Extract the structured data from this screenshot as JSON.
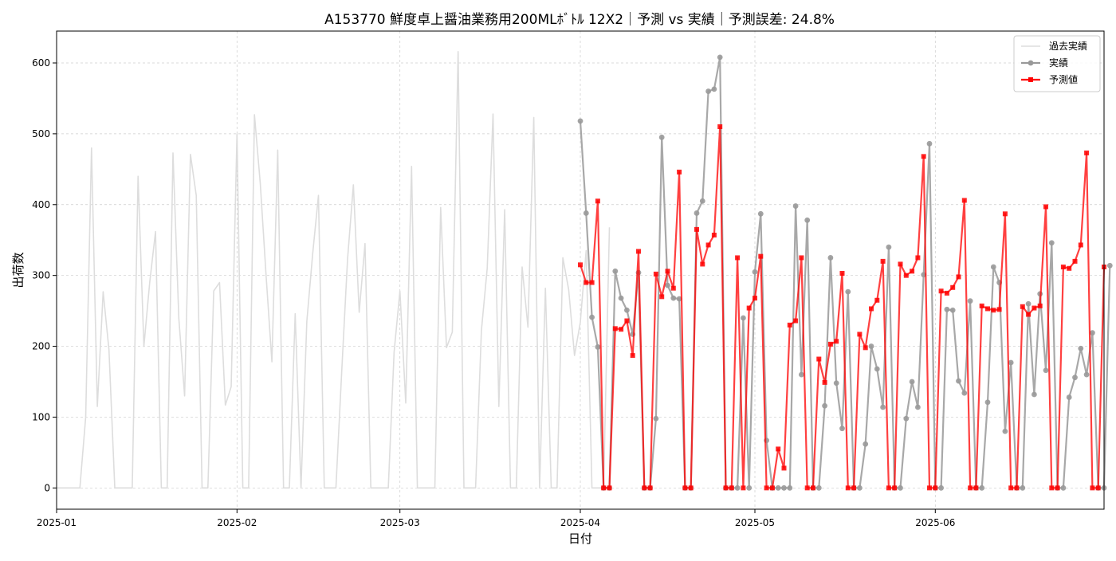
{
  "chart_data": {
    "type": "line",
    "title": "A153770 鮮度卓上醤油業務用200MLﾎﾞﾄﾙ 12X2｜予測 vs 実績｜予測誤差: 24.8%",
    "xlabel": "日付",
    "ylabel": "出荷数",
    "x_range": [
      "2025-01-01",
      "2025-06-30"
    ],
    "ylim": [
      -30,
      645
    ],
    "x_ticks": [
      "2025-01",
      "2025-02",
      "2025-03",
      "2025-04",
      "2025-05",
      "2025-06"
    ],
    "y_ticks": [
      0,
      100,
      200,
      300,
      400,
      500,
      600
    ],
    "grid": true,
    "legend": {
      "position": "top-right",
      "entries": [
        "過去実績",
        "実績",
        "予測値"
      ]
    },
    "series": [
      {
        "name": "過去実績",
        "color": "#dddddd",
        "marker": "none",
        "start_date": "2025-01-01",
        "values": [
          0,
          0,
          0,
          0,
          0,
          100,
          480,
          115,
          277,
          195,
          0,
          0,
          0,
          0,
          440,
          200,
          290,
          362,
          0,
          0,
          473,
          240,
          130,
          471,
          413,
          0,
          0,
          278,
          290,
          117,
          143,
          500,
          0,
          0,
          527,
          430,
          300,
          178,
          477,
          0,
          0,
          246,
          0,
          235,
          330,
          413,
          0,
          0,
          0,
          165,
          323,
          428,
          248,
          345,
          0,
          0,
          0,
          0,
          192,
          278,
          120,
          454,
          0,
          0,
          0,
          0,
          396,
          198,
          220,
          616,
          0,
          0,
          0,
          222,
          310,
          528,
          115,
          393,
          0,
          0,
          312,
          227,
          523,
          0,
          282,
          0,
          0,
          325,
          280,
          187,
          234,
          335,
          0,
          0,
          0,
          368
        ]
      },
      {
        "name": "実績",
        "color": "#999999",
        "marker": "circle",
        "start_date": "2025-04-01",
        "values": [
          518,
          388,
          241,
          199,
          0,
          0,
          306,
          268,
          251,
          217,
          304,
          0,
          0,
          98,
          495,
          286,
          268,
          267,
          0,
          0,
          388,
          405,
          560,
          563,
          608,
          0,
          0,
          0,
          240,
          0,
          305,
          387,
          67,
          0,
          0,
          0,
          0,
          398,
          160,
          378,
          0,
          0,
          116,
          325,
          148,
          84,
          277,
          0,
          0,
          62,
          200,
          168,
          114,
          340,
          0,
          0,
          98,
          150,
          114,
          301,
          486,
          0,
          0,
          252,
          251,
          151,
          134,
          264,
          0,
          0,
          121,
          312,
          290,
          80,
          177,
          0,
          0,
          260,
          132,
          274,
          166,
          346,
          0,
          0,
          128,
          156,
          197,
          160,
          219,
          0,
          0,
          314
        ]
      },
      {
        "name": "予測値",
        "color": "#ff0000",
        "marker": "square",
        "start_date": "2025-04-01",
        "values": [
          315,
          290,
          290,
          405,
          0,
          0,
          225,
          224,
          236,
          187,
          334,
          0,
          0,
          302,
          270,
          306,
          282,
          446,
          0,
          0,
          365,
          316,
          343,
          357,
          510,
          0,
          0,
          325,
          0,
          254,
          268,
          327,
          0,
          0,
          55,
          28,
          230,
          236,
          325,
          0,
          0,
          182,
          149,
          203,
          207,
          303,
          0,
          0,
          217,
          198,
          253,
          265,
          320,
          0,
          0,
          316,
          300,
          306,
          325,
          468,
          0,
          0,
          278,
          275,
          283,
          298,
          406,
          0,
          0,
          257,
          253,
          251,
          252,
          387,
          0,
          0,
          256,
          245,
          254,
          257,
          397,
          0,
          0,
          312,
          310,
          320,
          343,
          473,
          0,
          0,
          312
        ]
      }
    ]
  }
}
